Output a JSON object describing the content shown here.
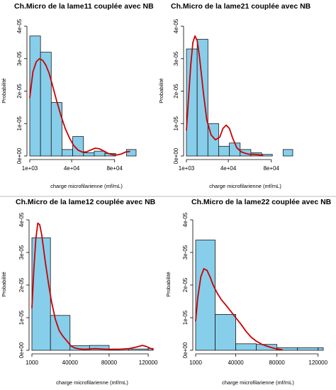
{
  "chart_data": [
    {
      "type": "bar",
      "title": "Ch.Micro de la lame11 couplée avec NB",
      "xlabel": "charge microfilarienne (mf/mL)",
      "ylabel": "Probabilité",
      "xlim": [
        1000,
        100000
      ],
      "ylim": [
        0,
        4e-05
      ],
      "x_tick_values": [
        1000,
        40000,
        80000
      ],
      "x_tick_labels": [
        "1e+03",
        "4e+04",
        "8e+04"
      ],
      "y_tick_values": [
        0,
        1e-05,
        2e-05,
        3e-05,
        4e-05
      ],
      "y_tick_labels": [
        "0e+00",
        "1e-05",
        "2e-05",
        "3e-05",
        "4e-05"
      ],
      "bin_edges": [
        1000,
        11000,
        21000,
        31000,
        41000,
        51000,
        61000,
        71000,
        81000,
        91000,
        101000
      ],
      "values": [
        3.7e-05,
        3.2e-05,
        1.65e-05,
        2e-06,
        6e-06,
        1e-06,
        1.5e-06,
        8e-07,
        0,
        2e-06
      ],
      "density_curve": {
        "x": [
          1000,
          4000,
          7000,
          10000,
          13000,
          16000,
          19000,
          22000,
          26000,
          30000,
          34000,
          38000,
          42000,
          46000,
          50000,
          54000,
          58000,
          62000,
          66000,
          70000,
          74000,
          78000,
          82000,
          86000,
          90000,
          94000
        ],
        "y": [
          1.8e-05,
          2.6e-05,
          2.9e-05,
          3e-05,
          2.95e-05,
          2.8e-05,
          2.55e-05,
          2.2e-05,
          1.7e-05,
          1.25e-05,
          8.5e-06,
          5.5e-06,
          3.2e-06,
          1.8e-06,
          1.2e-06,
          1.3e-06,
          1.9e-06,
          2.4e-06,
          2.2e-06,
          1.5e-06,
          8e-07,
          4e-07,
          3e-07,
          6e-07,
          1.2e-06,
          1.4e-06
        ]
      },
      "bar_color": "#87ceeb",
      "curve_color": "#cc0000"
    },
    {
      "type": "bar",
      "title": "Ch.Micro de la lame21 couplée avec NB",
      "xlabel": "charge microfilarienne (mf/mL)",
      "ylabel": "Probabilité",
      "xlim": [
        1000,
        100000
      ],
      "ylim": [
        0,
        4e-05
      ],
      "x_tick_values": [
        1000,
        40000,
        80000
      ],
      "x_tick_labels": [
        "1e+03",
        "4e+04",
        "8e+04"
      ],
      "y_tick_values": [
        0,
        1e-05,
        2e-05,
        3e-05,
        4e-05
      ],
      "y_tick_labels": [
        "0e+00",
        "1e-05",
        "2e-05",
        "3e-05",
        "4e-05"
      ],
      "bin_edges": [
        1000,
        11000,
        21000,
        31000,
        41000,
        51000,
        61000,
        71000,
        81000,
        91000,
        101000
      ],
      "values": [
        3.3e-05,
        3.6e-05,
        1e-05,
        3e-06,
        4e-06,
        2e-06,
        1e-06,
        5e-07,
        0,
        2e-06
      ],
      "density_curve": {
        "x": [
          1000,
          3000,
          5000,
          7000,
          9000,
          11000,
          13000,
          15000,
          17000,
          20000,
          24000,
          28000,
          32000,
          35000,
          38000,
          41000,
          44000,
          48000,
          52000,
          56000,
          60000,
          64000,
          68000,
          72000
        ],
        "y": [
          8e-06,
          1.8e-05,
          2.8e-05,
          3.5e-05,
          3.7e-05,
          3.55e-05,
          3.1e-05,
          2.5e-05,
          1.9e-05,
          1.1e-05,
          6.5e-06,
          5e-06,
          5.8e-06,
          8.5e-06,
          9.5e-06,
          8.5e-06,
          5.5e-06,
          2.5e-06,
          1.3e-06,
          8e-07,
          5e-07,
          5e-07,
          4e-07,
          2e-07
        ]
      },
      "bar_color": "#87ceeb",
      "curve_color": "#cc0000"
    },
    {
      "type": "bar",
      "title": "Ch.Micro de la lame12 couplée avec NB",
      "xlabel": "charge microfilarienne (mf/mL)",
      "ylabel": "Probabilité",
      "xlim": [
        1000,
        125000
      ],
      "ylim": [
        0,
        4e-05
      ],
      "x_tick_values": [
        1000,
        40000,
        80000,
        120000
      ],
      "x_tick_labels": [
        "1000",
        "40000",
        "80000",
        "120000"
      ],
      "y_tick_values": [
        0,
        1e-05,
        2e-05,
        3e-05,
        4e-05
      ],
      "y_tick_labels": [
        "0e+00",
        "1e-05",
        "2e-05",
        "3e-05",
        "4e-05"
      ],
      "bin_edges": [
        0,
        20000,
        40000,
        60000,
        80000,
        100000,
        120000,
        125000
      ],
      "values": [
        3.45e-05,
        1.07e-05,
        1.4e-06,
        1.5e-06,
        4e-07,
        4e-07,
        6e-07
      ],
      "density_curve": {
        "x": [
          1000,
          3000,
          5000,
          7000,
          9000,
          11000,
          13000,
          15000,
          18000,
          21000,
          25000,
          29000,
          33000,
          37000,
          41000,
          45000,
          50000,
          55000,
          60000,
          66000,
          72000,
          80000,
          90000,
          100000,
          108000,
          114000,
          118000,
          122000,
          125000
        ],
        "y": [
          1.3e-05,
          2.5e-05,
          3.4e-05,
          3.9e-05,
          3.85e-05,
          3.55e-05,
          3.1e-05,
          2.65e-05,
          2.05e-05,
          1.5e-05,
          9.5e-06,
          6e-06,
          4.2e-06,
          2.8e-06,
          1.3e-06,
          7e-07,
          4e-07,
          3e-07,
          4e-07,
          5e-07,
          4e-07,
          3e-07,
          3e-07,
          5e-07,
          1e-06,
          1.5e-06,
          1.2e-06,
          6e-07,
          3e-07
        ]
      },
      "bar_color": "#87ceeb",
      "curve_color": "#cc0000"
    },
    {
      "type": "bar",
      "title": "Ch.Micro de la lame22 couplée avec NB",
      "xlabel": "charge microfilarienne (mf/mL)",
      "ylabel": "Probabilité",
      "xlim": [
        1000,
        125000
      ],
      "ylim": [
        0,
        4e-05
      ],
      "x_tick_values": [
        1000,
        40000,
        80000,
        120000
      ],
      "x_tick_labels": [
        "1000",
        "40000",
        "80000",
        "120000"
      ],
      "y_tick_values": [
        0,
        1e-05,
        2e-05,
        3e-05,
        4e-05
      ],
      "y_tick_labels": [
        "0e+00",
        "1e-05",
        "2e-05",
        "3e-05",
        "4e-05"
      ],
      "bin_edges": [
        0,
        20000,
        40000,
        60000,
        80000,
        100000,
        120000,
        125000
      ],
      "values": [
        3.38e-05,
        1.1e-05,
        2e-06,
        1.8e-06,
        8e-07,
        8e-07,
        8e-07
      ],
      "density_curve": {
        "x": [
          1000,
          3000,
          6000,
          9000,
          12000,
          15000,
          18000,
          22000,
          26000,
          30000,
          35000,
          40000,
          45000,
          50000,
          55000,
          60000,
          65000,
          70000,
          75000,
          80000,
          85000
        ],
        "y": [
          9e-06,
          1.6e-05,
          2.25e-05,
          2.5e-05,
          2.45e-05,
          2.25e-05,
          2e-05,
          1.75e-05,
          1.55e-05,
          1.4e-05,
          1.2e-05,
          1e-05,
          8e-06,
          5.8e-06,
          4e-06,
          2.8e-06,
          1.9e-06,
          1.3e-06,
          8e-07,
          4e-07,
          2e-07
        ]
      },
      "bar_color": "#87ceeb",
      "curve_color": "#cc0000"
    }
  ]
}
